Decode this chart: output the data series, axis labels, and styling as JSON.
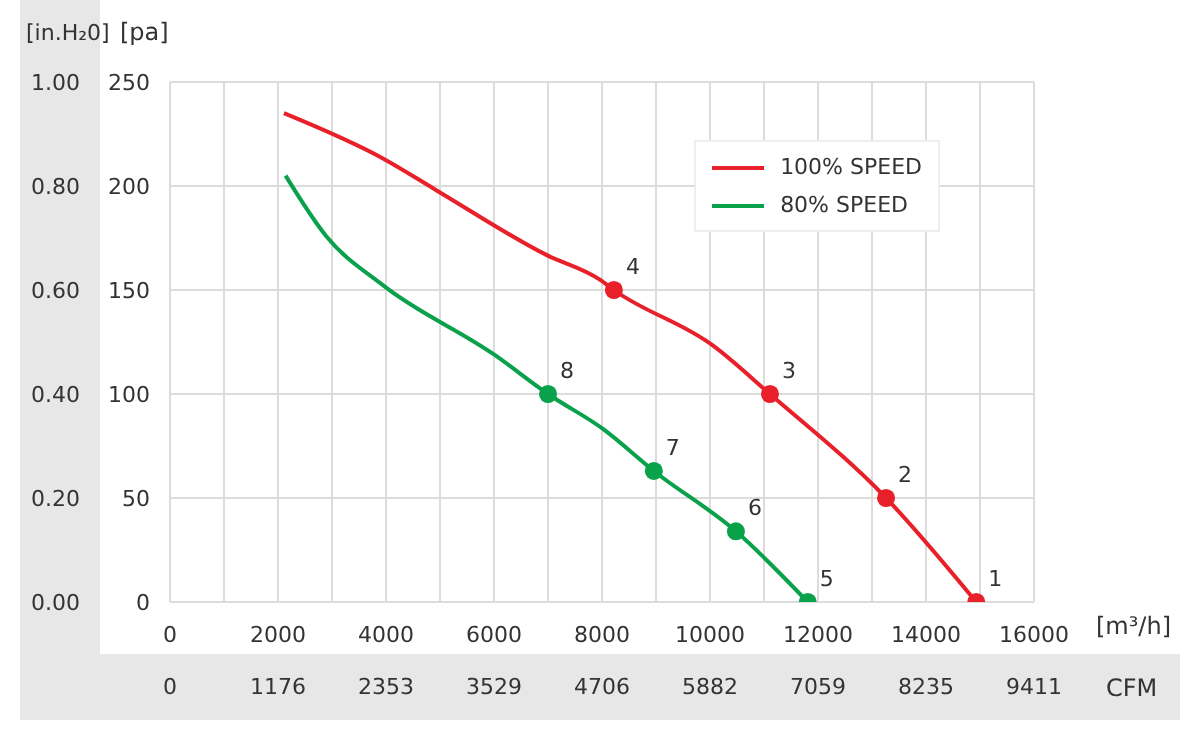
{
  "chart_data": {
    "type": "line",
    "xlabel": "[m³/h]",
    "ylabel": "[pa]",
    "y2label": "[in.H₂0]",
    "x2label": "CFM",
    "xlim": [
      0,
      16000
    ],
    "xticks": [
      0,
      {
        "value": 1000,
        "label": null
      },
      2000,
      {
        "value": 3000,
        "label": null
      },
      4000,
      {
        "value": 5000,
        "label": null
      },
      6000,
      {
        "value": 7000,
        "label": null
      },
      8000,
      {
        "value": 9000,
        "label": null
      },
      10000,
      {
        "value": 11000,
        "label": null
      },
      12000,
      {
        "value": 13000,
        "label": null
      },
      14000,
      {
        "value": 15000,
        "label": null
      },
      16000
    ],
    "ylim": [
      0,
      250
    ],
    "yticks": [
      0,
      50,
      100,
      150,
      200,
      250
    ],
    "y2lim": [
      0,
      1
    ],
    "y2ticks": [
      {
        "value": 0,
        "label": "0.00"
      },
      {
        "value": 0.2,
        "label": "0.20"
      },
      {
        "value": 0.4,
        "label": "0.40"
      },
      {
        "value": 0.6,
        "label": "0.60"
      },
      {
        "value": 0.8,
        "label": "0.80"
      },
      {
        "value": 1,
        "label": "1.00"
      }
    ],
    "x2lim": [
      0,
      9411
    ],
    "x2ticks": [
      0,
      1176,
      2353,
      3529,
      4706,
      5882,
      7059,
      8235,
      9411
    ],
    "grid": true,
    "legend": "top right",
    "line_style": "solid",
    "series": [
      {
        "name": "100% SPEED",
        "marker": "none",
        "color": "#e8202a",
        "x": [
          2110,
          3960,
          4930,
          6960,
          7960,
          8220,
          10070,
          11110,
          13260,
          14930
        ],
        "values": [
          235,
          213,
          198,
          167,
          155,
          150,
          123,
          100,
          50,
          0
        ]
      },
      {
        "name": "80% SPEED",
        "marker": "none",
        "color": "#0aa14b",
        "x": [
          2140,
          2890,
          3960,
          6000,
          7000,
          8030,
          8960,
          10480,
          11810
        ],
        "values": [
          205,
          176,
          152,
          119,
          100,
          83,
          63,
          34,
          0
        ]
      },
      {
        "type": "scatter",
        "marker": "circle",
        "color": "#e8202a",
        "x": [
          14930,
          13260,
          11110,
          8220
        ],
        "values": [
          0,
          50,
          100,
          150
        ]
      },
      {
        "type": "scatter",
        "marker": "circle",
        "color": "#0aa14b",
        "x": [
          11810,
          10480,
          8960,
          7000
        ],
        "values": [
          0,
          34,
          63,
          100
        ]
      }
    ],
    "annotations": [
      {
        "text": "1",
        "x": 14930,
        "y": 0
      },
      {
        "text": "2",
        "x": 13260,
        "y": 50
      },
      {
        "text": "3",
        "x": 11110,
        "y": 100
      },
      {
        "text": "4",
        "x": 8220,
        "y": 150
      },
      {
        "text": "5",
        "x": 11810,
        "y": 0
      },
      {
        "text": "6",
        "x": 10480,
        "y": 34
      },
      {
        "text": "7",
        "x": 8960,
        "y": 63
      },
      {
        "text": "8",
        "x": 7000,
        "y": 100
      }
    ]
  }
}
